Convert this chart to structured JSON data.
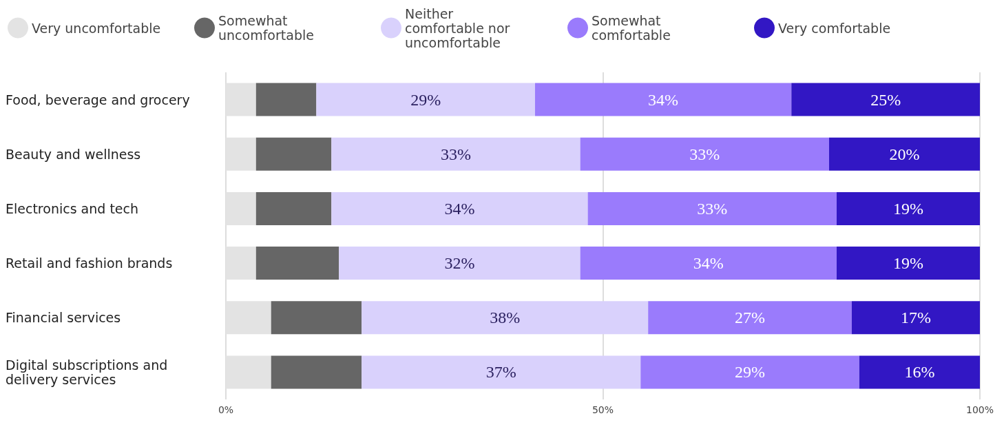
{
  "chart_data": {
    "type": "bar",
    "orientation": "horizontal",
    "stacked": true,
    "categories": [
      "Food, beverage and grocery",
      "Beauty and wellness",
      "Electronics and tech",
      "Retail and fashion brands",
      "Financial services",
      "Digital subscriptions and delivery services"
    ],
    "series": [
      {
        "name": "Very uncomfortable",
        "color": "#e3e3e3",
        "values": [
          4,
          4,
          4,
          4,
          6,
          6
        ]
      },
      {
        "name": "Somewhat uncomfortable",
        "color": "#666666",
        "values": [
          8,
          10,
          10,
          11,
          12,
          12
        ]
      },
      {
        "name": "Neither comfortable nor uncomfortable",
        "color": "#d9d1fc",
        "values": [
          29,
          33,
          34,
          32,
          38,
          37
        ],
        "value_labels": [
          "29%",
          "33%",
          "34%",
          "32%",
          "38%",
          "37%"
        ]
      },
      {
        "name": "Somewhat comfortable",
        "color": "#9a7bfc",
        "values": [
          34,
          33,
          33,
          34,
          27,
          29
        ],
        "value_labels": [
          "34%",
          "33%",
          "33%",
          "34%",
          "27%",
          "29%"
        ]
      },
      {
        "name": "Very comfortable",
        "color": "#3217c4",
        "values": [
          25,
          20,
          19,
          19,
          17,
          16
        ],
        "value_labels": [
          "25%",
          "20%",
          "19%",
          "19%",
          "17%",
          "16%"
        ]
      }
    ],
    "xlim": [
      0,
      100
    ],
    "xticks": [
      {
        "value": 0,
        "label": "0%"
      },
      {
        "value": 50,
        "label": "50%"
      },
      {
        "value": 100,
        "label": "100%"
      }
    ],
    "grid": "x",
    "legend": "top left"
  }
}
